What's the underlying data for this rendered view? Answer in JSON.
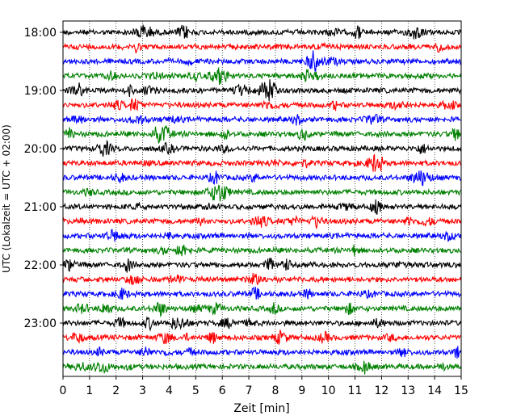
{
  "chart_data": {
    "type": "line",
    "title": "",
    "xlabel": "Zeit  [min]",
    "ylabel": "UTC (Lokalzeit = UTC + 02:00)",
    "xlim": [
      0,
      15
    ],
    "x_ticks": [
      "0",
      "1",
      "2",
      "3",
      "4",
      "5",
      "6",
      "7",
      "8",
      "9",
      "10",
      "11",
      "12",
      "13",
      "14",
      "15"
    ],
    "y_tick_labels": [
      "18:00",
      "19:00",
      "20:00",
      "21:00",
      "22:00",
      "23:00"
    ],
    "y_tick_trace_index": [
      0,
      4,
      8,
      12,
      16,
      20
    ],
    "grid": {
      "vertical": true,
      "style": "dotted"
    },
    "trace_interval_minutes": 15,
    "trace_colors": [
      "#000000",
      "#ff0000",
      "#0000ff",
      "#008000"
    ],
    "traces": [
      {
        "start": "18:00",
        "color": "#000000"
      },
      {
        "start": "18:15",
        "color": "#ff0000"
      },
      {
        "start": "18:30",
        "color": "#0000ff"
      },
      {
        "start": "18:45",
        "color": "#008000"
      },
      {
        "start": "19:00",
        "color": "#000000"
      },
      {
        "start": "19:15",
        "color": "#ff0000"
      },
      {
        "start": "19:30",
        "color": "#0000ff"
      },
      {
        "start": "19:45",
        "color": "#008000"
      },
      {
        "start": "20:00",
        "color": "#000000"
      },
      {
        "start": "20:15",
        "color": "#ff0000"
      },
      {
        "start": "20:30",
        "color": "#0000ff"
      },
      {
        "start": "20:45",
        "color": "#008000"
      },
      {
        "start": "21:00",
        "color": "#000000"
      },
      {
        "start": "21:15",
        "color": "#ff0000"
      },
      {
        "start": "21:30",
        "color": "#0000ff"
      },
      {
        "start": "21:45",
        "color": "#008000"
      },
      {
        "start": "22:00",
        "color": "#000000"
      },
      {
        "start": "22:15",
        "color": "#ff0000"
      },
      {
        "start": "22:30",
        "color": "#0000ff"
      },
      {
        "start": "22:45",
        "color": "#008000"
      },
      {
        "start": "23:00",
        "color": "#000000"
      },
      {
        "start": "23:15",
        "color": "#ff0000"
      },
      {
        "start": "23:30",
        "color": "#0000ff"
      },
      {
        "start": "23:45",
        "color": "#008000"
      }
    ]
  }
}
